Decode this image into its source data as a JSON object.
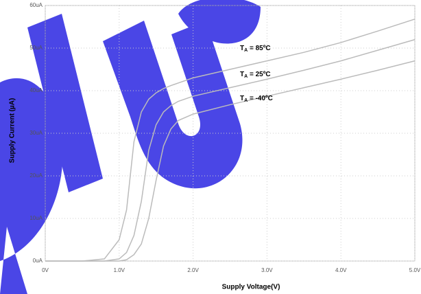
{
  "chart_data": {
    "type": "line",
    "x_label": "Supply Voltage(V)",
    "y_label": "Supply Current (µA)",
    "x": [
      0,
      0.5,
      0.8,
      1.0,
      1.1,
      1.2,
      1.3,
      1.4,
      1.5,
      1.6,
      1.7,
      1.8,
      2.0,
      2.5,
      3.0,
      3.5,
      4.0,
      4.5,
      5.0
    ],
    "series": [
      {
        "label": [
          "T",
          "A",
          " = 85ºC"
        ],
        "color": "#bbbbbb",
        "values": [
          0,
          0,
          0.5,
          5,
          12,
          28,
          35,
          38,
          39.5,
          40.5,
          41.2,
          41.8,
          43,
          45,
          47,
          49,
          51.3,
          54,
          56.8
        ]
      },
      {
        "label": [
          "T",
          "A",
          " = 25ºC"
        ],
        "color": "#bbbbbb",
        "values": [
          0,
          0,
          0,
          0.5,
          2,
          6,
          14,
          26,
          32,
          35,
          36.5,
          37.5,
          38.7,
          40.7,
          42.7,
          44.8,
          47,
          49.5,
          52
        ]
      },
      {
        "label": [
          "T",
          "A",
          " = -40ºC"
        ],
        "color": "#bbbbbb",
        "values": [
          0,
          0,
          0,
          0,
          0.3,
          1.5,
          4,
          10,
          19,
          27,
          31,
          33,
          34.5,
          36.7,
          38.7,
          40.7,
          42.7,
          44.8,
          47
        ]
      }
    ],
    "xlim": [
      0,
      5
    ],
    "ylim": [
      0,
      60
    ],
    "xticks": [
      {
        "value": 0,
        "label": "0V"
      },
      {
        "value": 1,
        "label": "1.0V"
      },
      {
        "value": 2,
        "label": "2.0V"
      },
      {
        "value": 3,
        "label": "3.0V"
      },
      {
        "value": 4,
        "label": "4.0V"
      },
      {
        "value": 5,
        "label": "5.0V"
      }
    ],
    "yticks": [
      {
        "value": 0,
        "label": "0uA"
      },
      {
        "value": 10,
        "label": "10uA"
      },
      {
        "value": 20,
        "label": "20uA"
      },
      {
        "value": 30,
        "label": "30uA"
      },
      {
        "value": 40,
        "label": "40uA"
      },
      {
        "value": 50,
        "label": "50uA"
      },
      {
        "value": 60,
        "label": "60uA"
      }
    ],
    "grid": true
  }
}
